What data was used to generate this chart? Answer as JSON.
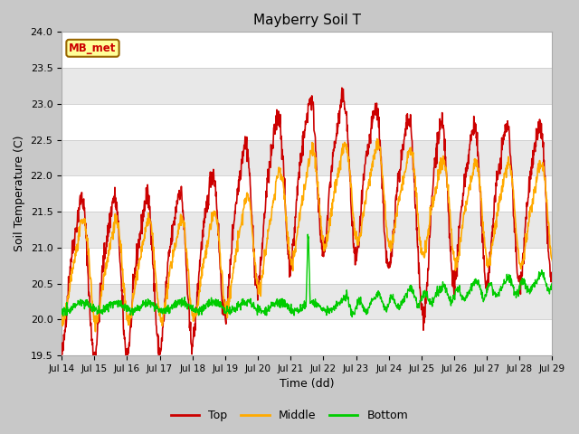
{
  "title": "Mayberry Soil T",
  "xlabel": "Time (dd)",
  "ylabel": "Soil Temperature (C)",
  "ylim": [
    19.5,
    24.0
  ],
  "yticks": [
    19.5,
    20.0,
    20.5,
    21.0,
    21.5,
    22.0,
    22.5,
    23.0,
    23.5,
    24.0
  ],
  "xtick_labels": [
    "Jul 14",
    "Jul 15",
    "Jul 16",
    "Jul 17",
    "Jul 18",
    "Jul 19",
    "Jul 20",
    "Jul 21",
    "Jul 22",
    "Jul 23",
    "Jul 24",
    "Jul 25",
    "Jul 26",
    "Jul 27",
    "Jul 28",
    "Jul 29"
  ],
  "legend_label": "MB_met",
  "top_color": "#cc0000",
  "mid_color": "#ffaa00",
  "bot_color": "#00cc00",
  "band_gray": "#e8e8e8",
  "band_white": "#ffffff",
  "fig_bg": "#c8c8c8",
  "mb_met_bg": "#ffff99",
  "mb_met_edge": "#996600",
  "mb_met_text": "#cc0000"
}
